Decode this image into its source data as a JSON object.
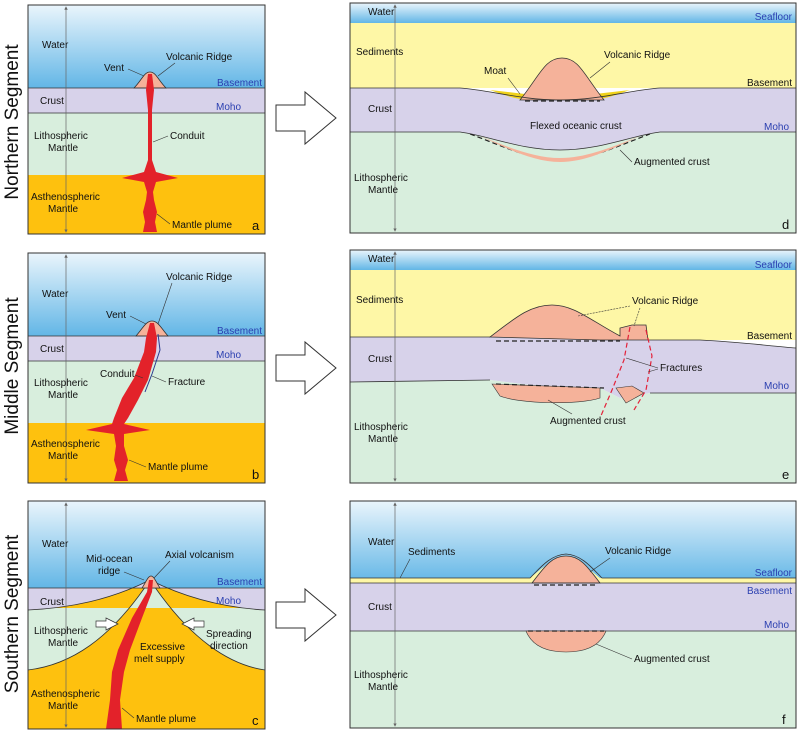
{
  "colors": {
    "water_top": "#62b6e6",
    "water_bottom": "#eaf5fc",
    "sediments": "#fef7a6",
    "crust": "#d7d2ea",
    "lithosphere": "#d8eedd",
    "asthenosphere": "#fec10e",
    "ridge": "#f5b29a",
    "magma": "#e3222a",
    "moat": "#f0d21b",
    "fracture": "#e3223a",
    "blue_label": "#2a3fb0"
  },
  "segments": {
    "northern": "Northern Segment",
    "middle": "Middle Segment",
    "southern": "Southern Segment"
  },
  "panel_a": {
    "letter": "a",
    "water": "Water",
    "vent": "Vent",
    "volcanic_ridge": "Volcanic Ridge",
    "basement": "Basement",
    "crust": "Crust",
    "moho": "Moho",
    "lith_1": "Lithospheric",
    "lith_2": "Mantle",
    "conduit": "Conduit",
    "asth_1": "Asthenospheric",
    "asth_2": "Mantle",
    "plume": "Mantle plume"
  },
  "panel_b": {
    "letter": "b",
    "water": "Water",
    "vent": "Vent",
    "volcanic_ridge": "Volcanic Ridge",
    "basement": "Basement",
    "crust": "Crust",
    "moho": "Moho",
    "lith_1": "Lithospheric",
    "lith_2": "Mantle",
    "conduit": "Conduit",
    "fracture": "Fracture",
    "asth_1": "Asthenospheric",
    "asth_2": "Mantle",
    "plume": "Mantle plume"
  },
  "panel_c": {
    "letter": "c",
    "water": "Water",
    "mor_1": "Mid-ocean",
    "mor_2": "ridge",
    "axial": "Axial volcanism",
    "basement": "Basement",
    "crust": "Crust",
    "moho": "Moho",
    "lith_1": "Lithospheric",
    "lith_2": "Mantle",
    "melt_1": "Excessive",
    "melt_2": "melt supply",
    "spread_1": "Spreading",
    "spread_2": "direction",
    "asth_1": "Asthenospheric",
    "asth_2": "Mantle",
    "plume": "Mantle plume"
  },
  "panel_d": {
    "letter": "d",
    "water": "Water",
    "seafloor": "Seafloor",
    "sediments": "Sediments",
    "volcanic_ridge": "Volcanic Ridge",
    "moat": "Moat",
    "basement": "Basement",
    "crust": "Crust",
    "flexed": "Flexed oceanic crust",
    "moho": "Moho",
    "augmented": "Augmented crust",
    "lith_1": "Lithospheric",
    "lith_2": "Mantle"
  },
  "panel_e": {
    "letter": "e",
    "water": "Water",
    "seafloor": "Seafloor",
    "sediments": "Sediments",
    "volcanic_ridge": "Volcanic Ridge",
    "basement": "Basement",
    "crust": "Crust",
    "fractures": "Fractures",
    "moho": "Moho",
    "augmented": "Augmented crust",
    "lith_1": "Lithospheric",
    "lith_2": "Mantle"
  },
  "panel_f": {
    "letter": "f",
    "water": "Water",
    "sediments": "Sediments",
    "volcanic_ridge": "Volcanic Ridge",
    "seafloor": "Seafloor",
    "basement": "Basement",
    "crust": "Crust",
    "moho": "Moho",
    "augmented": "Augmented crust",
    "lith_1": "Lithospheric",
    "lith_2": "Mantle"
  }
}
